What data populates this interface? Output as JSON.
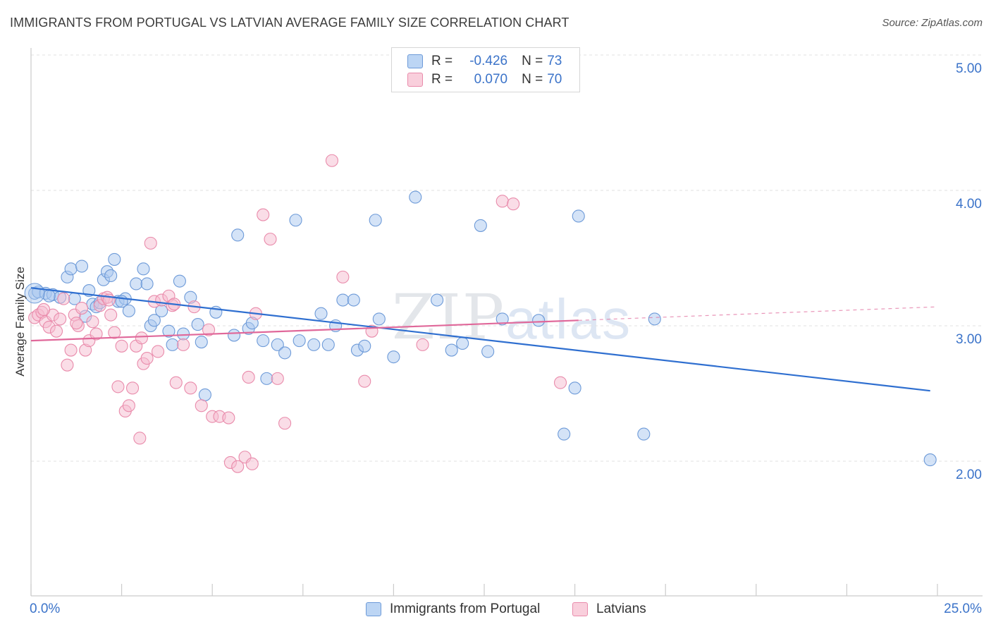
{
  "title": "IMMIGRANTS FROM PORTUGAL VS LATVIAN AVERAGE FAMILY SIZE CORRELATION CHART",
  "source": "Source: ZipAtlas.com",
  "watermark": {
    "zip": "ZIP",
    "atlas": "atlas"
  },
  "legend": {
    "rows": [
      {
        "r_label": "R =",
        "r_value": "-0.426",
        "n_label": "N =",
        "n_value": "73"
      },
      {
        "r_label": "R =",
        "r_value": "0.070",
        "n_label": "N =",
        "n_value": "70"
      }
    ]
  },
  "colors": {
    "portugal_fill": "#a9c8f0",
    "portugal_stroke": "#6d9ad8",
    "portugal_line": "#2f6fd0",
    "latvian_fill": "#f6bcd0",
    "latvian_stroke": "#e98bab",
    "latvian_line": "#e0689a",
    "tick_text": "#3b73c9",
    "grid": "#e2e2e2"
  },
  "chart_data": {
    "type": "scatter",
    "xlabel": "",
    "ylabel": "Average Family Size",
    "x_tick_labels": [
      "0.0%",
      "25.0%"
    ],
    "y_tick_labels": [
      "2.00",
      "3.00",
      "4.00",
      "5.00"
    ],
    "y_ticks": [
      2.0,
      3.0,
      4.0,
      5.0
    ],
    "xlim": [
      0,
      25
    ],
    "ylim": [
      1.1,
      5.1
    ],
    "grid": true,
    "legend_position": "top-center",
    "series": [
      {
        "name": "Immigrants from Portugal",
        "color": "#a9c8f0",
        "trend": {
          "x": [
            0.0,
            24.8
          ],
          "y": [
            3.28,
            2.52
          ],
          "dashed_extension": false
        },
        "points": [
          [
            0.1,
            3.24
          ],
          [
            0.2,
            3.25
          ],
          [
            0.4,
            3.24
          ],
          [
            0.6,
            3.23
          ],
          [
            0.8,
            3.21
          ],
          [
            1.0,
            3.36
          ],
          [
            1.1,
            3.42
          ],
          [
            1.2,
            3.2
          ],
          [
            1.4,
            3.44
          ],
          [
            1.5,
            3.07
          ],
          [
            1.6,
            3.26
          ],
          [
            1.7,
            3.16
          ],
          [
            1.8,
            3.14
          ],
          [
            1.9,
            3.17
          ],
          [
            2.0,
            3.34
          ],
          [
            2.1,
            3.4
          ],
          [
            2.2,
            3.37
          ],
          [
            2.3,
            3.49
          ],
          [
            2.4,
            3.18
          ],
          [
            2.6,
            3.2
          ],
          [
            2.7,
            3.11
          ],
          [
            2.9,
            3.31
          ],
          [
            3.1,
            3.42
          ],
          [
            3.2,
            3.31
          ],
          [
            3.3,
            3.0
          ],
          [
            3.4,
            3.04
          ],
          [
            3.6,
            3.11
          ],
          [
            3.8,
            2.96
          ],
          [
            3.9,
            2.86
          ],
          [
            4.1,
            3.33
          ],
          [
            4.2,
            2.94
          ],
          [
            4.4,
            3.21
          ],
          [
            4.6,
            3.01
          ],
          [
            4.7,
            2.88
          ],
          [
            4.8,
            2.49
          ],
          [
            5.1,
            3.1
          ],
          [
            5.6,
            2.93
          ],
          [
            5.7,
            3.67
          ],
          [
            6.0,
            2.98
          ],
          [
            6.1,
            3.02
          ],
          [
            6.4,
            2.89
          ],
          [
            6.5,
            2.61
          ],
          [
            6.8,
            2.86
          ],
          [
            7.0,
            2.8
          ],
          [
            7.3,
            3.78
          ],
          [
            7.4,
            2.89
          ],
          [
            7.8,
            2.86
          ],
          [
            8.0,
            3.09
          ],
          [
            8.2,
            2.86
          ],
          [
            8.4,
            3.0
          ],
          [
            8.6,
            3.19
          ],
          [
            8.9,
            3.19
          ],
          [
            9.0,
            2.82
          ],
          [
            9.2,
            2.85
          ],
          [
            9.5,
            3.78
          ],
          [
            9.6,
            3.05
          ],
          [
            10.0,
            2.77
          ],
          [
            10.6,
            3.95
          ],
          [
            11.2,
            3.19
          ],
          [
            11.6,
            2.82
          ],
          [
            11.9,
            2.87
          ],
          [
            12.4,
            3.74
          ],
          [
            12.6,
            2.81
          ],
          [
            13.0,
            3.05
          ],
          [
            14.0,
            3.04
          ],
          [
            14.7,
            2.2
          ],
          [
            15.0,
            2.54
          ],
          [
            15.1,
            3.81
          ],
          [
            16.9,
            2.2
          ],
          [
            17.2,
            3.05
          ],
          [
            24.8,
            2.01
          ],
          [
            0.5,
            3.22
          ],
          [
            2.5,
            3.18
          ]
        ]
      },
      {
        "name": "Latvians",
        "color": "#f6bcd0",
        "trend": {
          "x": [
            0.0,
            15.1
          ],
          "y": [
            2.89,
            3.04
          ],
          "dashed_extension": true,
          "dashed_to": [
            25.0,
            3.14
          ]
        },
        "points": [
          [
            0.1,
            3.06
          ],
          [
            0.2,
            3.08
          ],
          [
            0.3,
            3.1
          ],
          [
            0.4,
            3.03
          ],
          [
            0.5,
            2.99
          ],
          [
            0.6,
            3.08
          ],
          [
            0.7,
            2.96
          ],
          [
            0.8,
            3.05
          ],
          [
            0.9,
            3.2
          ],
          [
            1.0,
            2.71
          ],
          [
            1.1,
            2.82
          ],
          [
            1.2,
            3.08
          ],
          [
            1.3,
            3.0
          ],
          [
            1.4,
            3.13
          ],
          [
            1.5,
            2.82
          ],
          [
            1.6,
            2.89
          ],
          [
            1.7,
            3.03
          ],
          [
            1.8,
            2.94
          ],
          [
            1.9,
            3.15
          ],
          [
            2.0,
            3.2
          ],
          [
            2.1,
            3.21
          ],
          [
            2.2,
            3.08
          ],
          [
            2.3,
            2.95
          ],
          [
            2.4,
            2.55
          ],
          [
            2.5,
            2.85
          ],
          [
            2.6,
            2.37
          ],
          [
            2.7,
            2.41
          ],
          [
            2.8,
            2.54
          ],
          [
            2.9,
            2.85
          ],
          [
            3.0,
            2.17
          ],
          [
            3.1,
            2.72
          ],
          [
            3.2,
            2.76
          ],
          [
            3.3,
            3.61
          ],
          [
            3.4,
            3.18
          ],
          [
            3.5,
            2.81
          ],
          [
            3.6,
            3.19
          ],
          [
            3.8,
            3.22
          ],
          [
            3.9,
            3.15
          ],
          [
            4.0,
            2.58
          ],
          [
            4.2,
            2.86
          ],
          [
            4.4,
            2.54
          ],
          [
            4.5,
            3.14
          ],
          [
            4.7,
            2.41
          ],
          [
            4.9,
            2.97
          ],
          [
            5.0,
            2.33
          ],
          [
            5.2,
            2.33
          ],
          [
            5.5,
            1.99
          ],
          [
            5.7,
            1.96
          ],
          [
            5.9,
            2.03
          ],
          [
            6.1,
            1.98
          ],
          [
            6.2,
            3.09
          ],
          [
            6.4,
            3.82
          ],
          [
            6.6,
            3.64
          ],
          [
            6.8,
            2.61
          ],
          [
            7.0,
            2.28
          ],
          [
            8.3,
            4.22
          ],
          [
            8.6,
            3.36
          ],
          [
            9.2,
            2.59
          ],
          [
            9.4,
            2.96
          ],
          [
            10.8,
            2.86
          ],
          [
            13.0,
            3.92
          ],
          [
            13.3,
            3.9
          ],
          [
            14.6,
            2.58
          ],
          [
            0.35,
            3.12
          ],
          [
            1.25,
            3.02
          ],
          [
            2.15,
            3.19
          ],
          [
            3.05,
            2.91
          ],
          [
            3.95,
            3.16
          ],
          [
            5.45,
            2.32
          ],
          [
            6.0,
            2.62
          ]
        ]
      }
    ]
  },
  "bottom_legend": [
    {
      "label": "Immigrants from Portugal"
    },
    {
      "label": "Latvians"
    }
  ]
}
